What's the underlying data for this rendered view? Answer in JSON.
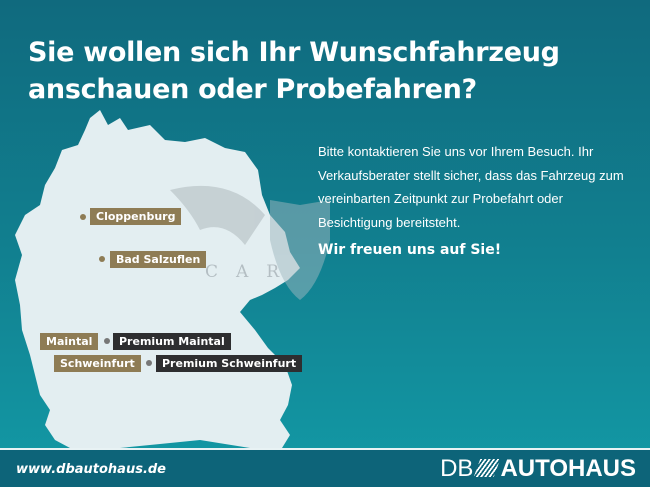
{
  "headline": {
    "line1": "Sie wollen sich Ihr Wunschfahrzeug",
    "line2": "anschauen oder Probefahren?"
  },
  "locations": [
    {
      "label": "Cloppenburg"
    },
    {
      "label": "Bad Salzuflen"
    },
    {
      "label": "Maintal",
      "premium": "Premium Maintal"
    },
    {
      "label": "Schweinfurt",
      "premium": "Premium Schweinfurt"
    }
  ],
  "info": {
    "text": "Bitte kontaktieren Sie uns vor Ihrem Besuch. Ihr Verkaufsberater stellt sicher, dass das Fahrzeug zum vereinbarten Zeitpunkt zur Probefahrt oder Besichtigung bereitsteht.",
    "cta": "Wir freuen uns auf Sie!"
  },
  "watermark": "CAR",
  "footer": {
    "url": "www.dbautohaus.de",
    "logo_prefix": "DB",
    "logo_main": "AUTOHAUS"
  },
  "colors": {
    "gold": "#8e7c55",
    "dark": "#2e2e30",
    "footer": "#0d6479",
    "map": "#e3eef1"
  }
}
